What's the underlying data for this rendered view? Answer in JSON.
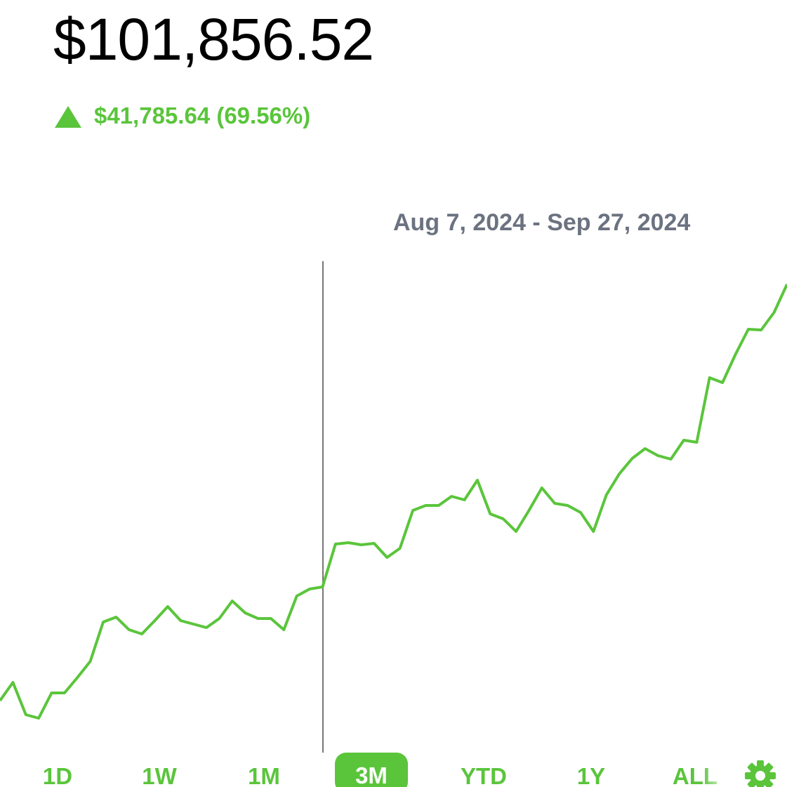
{
  "header": {
    "balance": "$101,856.52",
    "change": "$41,785.64 (69.56%)"
  },
  "chart_data": {
    "type": "line",
    "color": "#5ac53b",
    "range_label": "Aug 7, 2024 - Sep 27, 2024",
    "values": [
      123,
      149,
      103,
      98,
      134,
      134,
      156,
      179,
      235,
      242,
      224,
      218,
      237,
      257,
      237,
      232,
      227,
      240,
      265,
      248,
      240,
      240,
      224,
      272,
      282,
      285,
      346,
      348,
      345,
      347,
      327,
      340,
      394,
      401,
      401,
      414,
      409,
      437,
      389,
      382,
      364,
      394,
      426,
      404,
      401,
      391,
      364,
      416,
      446,
      468,
      482,
      472,
      467,
      494,
      491,
      583,
      576,
      616,
      652,
      651,
      676,
      716
    ]
  },
  "ranges": [
    "1D",
    "1W",
    "1M",
    "3M",
    "YTD",
    "1Y",
    "ALL"
  ]
}
